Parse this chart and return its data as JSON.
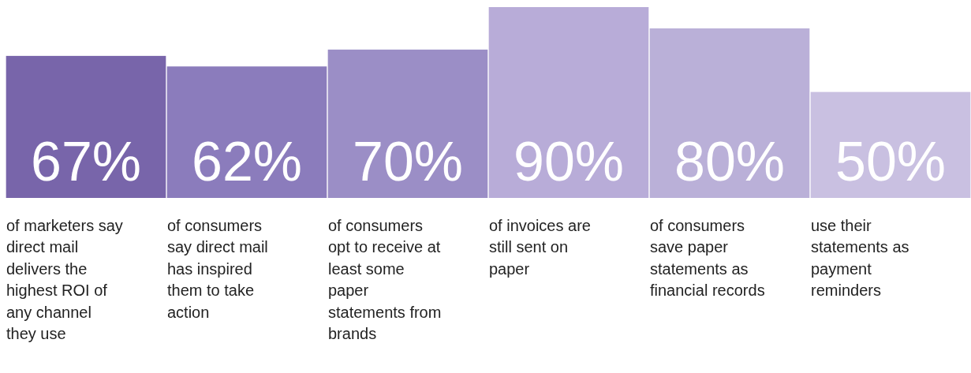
{
  "chart_data": {
    "type": "bar",
    "categories": [
      "of marketers say direct mail delivers the highest ROI of any channel they use",
      "of consumers say direct mail has inspired them to take action",
      "of consumers opt to receive at least some paper statements from brands",
      "of invoices are still sent on paper",
      "of consumers save paper statements as financial records",
      "use their statements as payment reminders"
    ],
    "values": [
      67,
      62,
      70,
      90,
      80,
      50
    ],
    "value_labels": [
      "67%",
      "62%",
      "70%",
      "90%",
      "80%",
      "50%"
    ],
    "colors": [
      "#7865aa",
      "#8b7cbc",
      "#9b8ec6",
      "#b8acd8",
      "#bab0d8",
      "#c9c0e1"
    ],
    "data_labels": true
  }
}
